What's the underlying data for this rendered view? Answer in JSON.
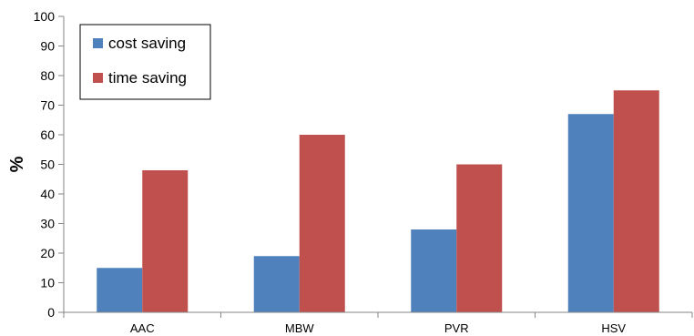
{
  "chart_data": {
    "type": "bar",
    "categories": [
      "AAC",
      "MBW",
      "PVR",
      "HSV"
    ],
    "series": [
      {
        "name": "cost saving",
        "values": [
          15,
          19,
          28,
          67
        ],
        "color": "#4f81bd"
      },
      {
        "name": "time saving",
        "values": [
          48,
          60,
          50,
          75
        ],
        "color": "#c0504d"
      }
    ],
    "ylabel": "%",
    "ylim": [
      0,
      100
    ],
    "yticks": [
      0,
      10,
      20,
      30,
      40,
      50,
      60,
      70,
      80,
      90,
      100
    ],
    "grid": false,
    "legend": "top-left"
  }
}
